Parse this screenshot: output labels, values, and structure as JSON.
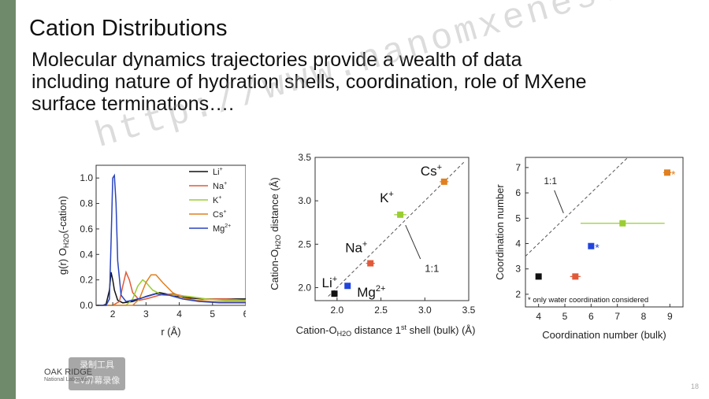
{
  "slide": {
    "title": "Cation Distributions",
    "body_lines": [
      "Molecular dynamics trajectories provide a wealth of data",
      "including nature of hydration shells, coordination, role of MXene",
      "surface terminations…."
    ],
    "watermark": "http://www.nanomxenes.com",
    "logo_text": "OAK RIDGE",
    "logo_subtext": "National Laboratory",
    "tool_badge": [
      "录制工具",
      "EV屏幕录像"
    ],
    "page_number": "18"
  },
  "chart_data": [
    {
      "type": "line",
      "title": "",
      "xlabel": "r (Å)",
      "ylabel": "g(r) O",
      "ylabel_sub": "H2O",
      "ylabel_suffix": "(-cation)",
      "xlim": [
        1.5,
        6
      ],
      "ylim": [
        0,
        1.1
      ],
      "xticks": [
        2,
        3,
        4,
        5,
        6
      ],
      "yticks": [
        "0.0",
        "0.2",
        "0.4",
        "0.6",
        "0.8",
        "1.0"
      ],
      "legend_position": "top-right",
      "series": [
        {
          "name": "Li",
          "sup": "+",
          "color": "#111111",
          "x": [
            1.5,
            1.7,
            1.8,
            1.9,
            1.95,
            2.0,
            2.05,
            2.15,
            2.3,
            2.6,
            3.0,
            3.4,
            3.8,
            4.2,
            4.7,
            5.2,
            6.0
          ],
          "y": [
            0,
            0,
            0.01,
            0.12,
            0.26,
            0.2,
            0.12,
            0.04,
            0.02,
            0.03,
            0.07,
            0.1,
            0.08,
            0.06,
            0.05,
            0.05,
            0.05
          ]
        },
        {
          "name": "Na",
          "sup": "+",
          "color": "#e05a3a",
          "x": [
            1.5,
            2.0,
            2.2,
            2.3,
            2.4,
            2.5,
            2.6,
            2.8,
            3.0,
            3.4,
            3.8,
            4.2,
            4.8,
            5.4,
            6.0
          ],
          "y": [
            0,
            0,
            0.03,
            0.15,
            0.26,
            0.2,
            0.1,
            0.04,
            0.05,
            0.08,
            0.09,
            0.07,
            0.05,
            0.05,
            0.04
          ]
        },
        {
          "name": "K",
          "sup": "+",
          "color": "#9acd32",
          "x": [
            1.5,
            2.4,
            2.6,
            2.75,
            2.9,
            3.0,
            3.2,
            3.5,
            3.9,
            4.3,
            4.8,
            5.4,
            6.0
          ],
          "y": [
            0,
            0,
            0.05,
            0.15,
            0.2,
            0.18,
            0.12,
            0.08,
            0.08,
            0.07,
            0.05,
            0.04,
            0.04
          ]
        },
        {
          "name": "Cs",
          "sup": "+",
          "color": "#e08020",
          "x": [
            1.5,
            2.6,
            2.8,
            3.0,
            3.15,
            3.3,
            3.5,
            3.8,
            4.1,
            4.5,
            5.0,
            5.5,
            6.0
          ],
          "y": [
            0,
            0,
            0.05,
            0.18,
            0.24,
            0.24,
            0.18,
            0.1,
            0.06,
            0.04,
            0.03,
            0.03,
            0.03
          ]
        },
        {
          "name": "Mg",
          "sup": "2+",
          "color": "#2a44c0",
          "x": [
            1.5,
            1.8,
            1.9,
            1.95,
            2.0,
            2.05,
            2.1,
            2.15,
            2.25,
            2.4,
            2.6,
            2.9,
            3.3,
            3.7,
            4.1,
            4.6,
            5.2,
            6.0
          ],
          "y": [
            0,
            0,
            0.05,
            0.5,
            1.0,
            1.02,
            0.8,
            0.35,
            0.08,
            0.03,
            0.04,
            0.06,
            0.09,
            0.08,
            0.05,
            0.03,
            0.02,
            0.02
          ]
        }
      ]
    },
    {
      "type": "scatter",
      "title": "",
      "xlabel_main": "Cation-O",
      "xlabel_sub": "H2O",
      "xlabel_mid": " distance 1",
      "xlabel_sup": "st",
      "xlabel_end": " shell (bulk) (Å)",
      "ylabel_main": "Cation-O",
      "ylabel_sub": "H2O",
      "ylabel_end": " distance (Å)",
      "xlim": [
        1.75,
        3.5
      ],
      "ylim": [
        1.85,
        3.5
      ],
      "xticks": [
        "2.0",
        "2.5",
        "3.0",
        "3.5"
      ],
      "yticks": [
        "2.0",
        "2.5",
        "3.0",
        "3.5"
      ],
      "reference_line_label": "1:1",
      "points": [
        {
          "name": "Li",
          "sup": "+",
          "x": 1.97,
          "y": 1.93,
          "xerr": 0.0,
          "color": "#111111"
        },
        {
          "name": "Mg",
          "sup": "2+",
          "x": 2.12,
          "y": 2.02,
          "xerr": 0.0,
          "color": "#2244dd"
        },
        {
          "name": "Na",
          "sup": "+",
          "x": 2.38,
          "y": 2.28,
          "xerr": 0.05,
          "color": "#e05a3a"
        },
        {
          "name": "K",
          "sup": "+",
          "x": 2.72,
          "y": 2.84,
          "xerr": 0.07,
          "color": "#9acd32"
        },
        {
          "name": "Cs",
          "sup": "+",
          "x": 3.22,
          "y": 3.22,
          "xerr": 0.05,
          "color": "#e08020"
        }
      ]
    },
    {
      "type": "scatter",
      "title": "",
      "xlabel": "Coordination number (bulk)",
      "ylabel": "Coordination number",
      "xlim": [
        3.5,
        9.5
      ],
      "ylim": [
        1.5,
        7.4
      ],
      "xticks": [
        4,
        5,
        6,
        7,
        8,
        9
      ],
      "yticks": [
        2,
        3,
        4,
        5,
        6,
        7
      ],
      "reference_line_label": "1:1",
      "footnote": "* only water coordination considered",
      "points": [
        {
          "x": 4.0,
          "y": 2.7,
          "xerr": 0.0,
          "color": "#111111",
          "star": false
        },
        {
          "x": 5.4,
          "y": 2.7,
          "xerr": 0.2,
          "color": "#e05a3a",
          "star": false
        },
        {
          "x": 6.0,
          "y": 3.9,
          "xerr": 0.1,
          "color": "#2244dd",
          "star": true
        },
        {
          "x": 7.2,
          "y": 4.8,
          "xerr": 1.6,
          "color": "#9acd32",
          "star": false
        },
        {
          "x": 8.9,
          "y": 6.8,
          "xerr": 0.15,
          "color": "#e08020",
          "star": true
        }
      ]
    }
  ]
}
